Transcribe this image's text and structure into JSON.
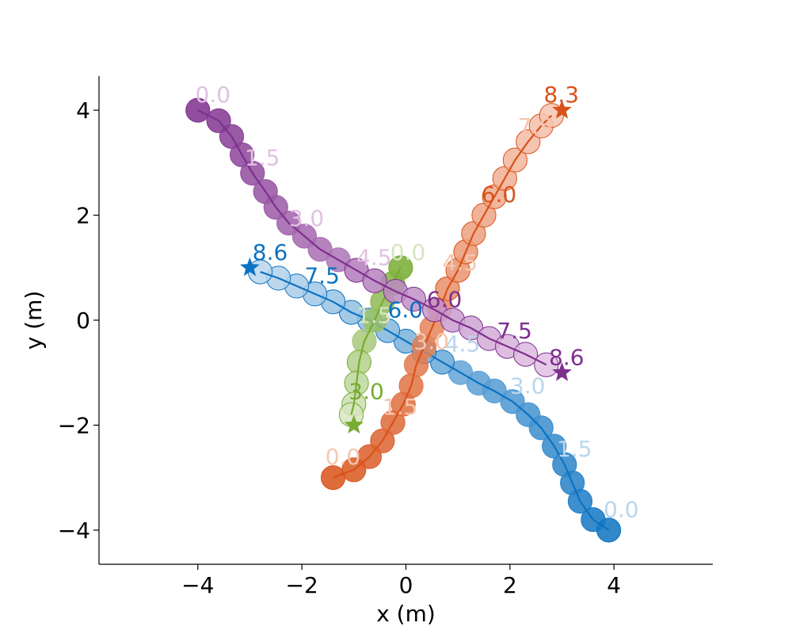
{
  "chart_data": {
    "type": "scatter",
    "title": "",
    "xlabel": "x (m)",
    "ylabel": "y (m)",
    "xlim": [
      -5.9,
      5.9
    ],
    "ylim": [
      -4.65,
      4.65
    ],
    "xticks": [
      -4,
      -2,
      0,
      2,
      4
    ],
    "yticks": [
      -4,
      -2,
      0,
      2,
      4
    ],
    "xtick_labels": [
      "−4",
      "−2",
      "0",
      "2",
      "4"
    ],
    "ytick_labels": [
      "−4",
      "−2",
      "0",
      "2",
      "4"
    ],
    "grid": false,
    "legend": "none",
    "marker_radius_data": 0.23,
    "series": [
      {
        "id": "blue",
        "color": "#0c72c1",
        "light_color": "#b9d6ec",
        "start": [
          3.9,
          -4.0
        ],
        "goal": [
          -3.0,
          1.0
        ],
        "path": [
          [
            3.9,
            -4.0
          ],
          [
            3.6,
            -3.8
          ],
          [
            3.35,
            -3.45
          ],
          [
            3.2,
            -3.1
          ],
          [
            3.05,
            -2.75
          ],
          [
            2.85,
            -2.4
          ],
          [
            2.6,
            -2.05
          ],
          [
            2.35,
            -1.8
          ],
          [
            2.05,
            -1.55
          ],
          [
            1.7,
            -1.35
          ],
          [
            1.4,
            -1.2
          ],
          [
            1.05,
            -1.0
          ],
          [
            0.7,
            -0.8
          ],
          [
            0.35,
            -0.6
          ],
          [
            0.0,
            -0.4
          ],
          [
            -0.35,
            -0.2
          ],
          [
            -0.7,
            0.0
          ],
          [
            -1.05,
            0.15
          ],
          [
            -1.4,
            0.35
          ],
          [
            -1.75,
            0.5
          ],
          [
            -2.1,
            0.65
          ],
          [
            -2.45,
            0.8
          ],
          [
            -2.8,
            0.92
          ]
        ],
        "time_labels": [
          {
            "text": "0.0",
            "x": 3.8,
            "y": -3.75,
            "tone": "light"
          },
          {
            "text": "1.5",
            "x": 2.9,
            "y": -2.6,
            "tone": "light"
          },
          {
            "text": "3.0",
            "x": 2.0,
            "y": -1.4,
            "tone": "light"
          },
          {
            "text": "4.5",
            "x": 0.75,
            "y": -0.6,
            "tone": "light"
          },
          {
            "text": "6.0",
            "x": -0.35,
            "y": 0.05,
            "tone": "dark"
          },
          {
            "text": "7.5",
            "x": -1.95,
            "y": 0.7,
            "tone": "dark"
          },
          {
            "text": "8.6",
            "x": -2.95,
            "y": 1.15,
            "tone": "dark"
          }
        ]
      },
      {
        "id": "orange",
        "color": "#d85219",
        "light_color": "#f6c6b1",
        "start": [
          -1.4,
          -3.0
        ],
        "goal": [
          3.0,
          4.0
        ],
        "path": [
          [
            -1.4,
            -3.0
          ],
          [
            -1.0,
            -2.85
          ],
          [
            -0.7,
            -2.6
          ],
          [
            -0.45,
            -2.3
          ],
          [
            -0.25,
            -1.95
          ],
          [
            -0.05,
            -1.6
          ],
          [
            0.1,
            -1.25
          ],
          [
            0.2,
            -0.85
          ],
          [
            0.35,
            -0.5
          ],
          [
            0.5,
            -0.15
          ],
          [
            0.65,
            0.2
          ],
          [
            0.8,
            0.6
          ],
          [
            1.0,
            0.95
          ],
          [
            1.15,
            1.3
          ],
          [
            1.3,
            1.65
          ],
          [
            1.5,
            2.0
          ],
          [
            1.7,
            2.35
          ],
          [
            1.9,
            2.7
          ],
          [
            2.1,
            3.05
          ],
          [
            2.35,
            3.4
          ],
          [
            2.6,
            3.7
          ],
          [
            2.8,
            3.9
          ]
        ],
        "time_labels": [
          {
            "text": "0.0",
            "x": -1.55,
            "y": -2.75,
            "tone": "light"
          },
          {
            "text": "1.5",
            "x": -0.45,
            "y": -1.8,
            "tone": "light"
          },
          {
            "text": "3.0",
            "x": 0.15,
            "y": -0.55,
            "tone": "light"
          },
          {
            "text": "4.5",
            "x": 0.7,
            "y": 0.95,
            "tone": "light"
          },
          {
            "text": "6.0",
            "x": 1.45,
            "y": 2.25,
            "tone": "dark"
          },
          {
            "text": "7.5",
            "x": 2.15,
            "y": 3.55,
            "tone": "light"
          },
          {
            "text": "8.3",
            "x": 2.65,
            "y": 4.15,
            "tone": "dark"
          }
        ]
      },
      {
        "id": "green",
        "color": "#77ac30",
        "light_color": "#d6e5c1",
        "start": [
          -0.1,
          1.0
        ],
        "goal": [
          -1.0,
          -2.0
        ],
        "path": [
          [
            -0.1,
            1.0
          ],
          [
            -0.25,
            0.7
          ],
          [
            -0.45,
            0.35
          ],
          [
            -0.6,
            0.0
          ],
          [
            -0.8,
            -0.4
          ],
          [
            -0.9,
            -0.8
          ],
          [
            -0.95,
            -1.2
          ],
          [
            -1.0,
            -1.6
          ],
          [
            -1.05,
            -1.8
          ]
        ],
        "time_labels": [
          {
            "text": "0.0",
            "x": -0.3,
            "y": 1.15,
            "tone": "light"
          },
          {
            "text": "1.5",
            "x": -0.95,
            "y": -0.05,
            "tone": "light"
          },
          {
            "text": "3.0",
            "x": -1.1,
            "y": -1.5,
            "tone": "dark"
          }
        ]
      },
      {
        "id": "purple",
        "color": "#7e2f8e",
        "light_color": "#e1c1e3",
        "start": [
          -4.0,
          4.0
        ],
        "goal": [
          3.0,
          -1.0
        ],
        "path": [
          [
            -4.0,
            4.0
          ],
          [
            -3.6,
            3.8
          ],
          [
            -3.35,
            3.5
          ],
          [
            -3.15,
            3.15
          ],
          [
            -2.95,
            2.8
          ],
          [
            -2.7,
            2.45
          ],
          [
            -2.5,
            2.15
          ],
          [
            -2.25,
            1.85
          ],
          [
            -1.95,
            1.6
          ],
          [
            -1.65,
            1.35
          ],
          [
            -1.3,
            1.15
          ],
          [
            -0.95,
            0.95
          ],
          [
            -0.6,
            0.75
          ],
          [
            -0.2,
            0.55
          ],
          [
            0.15,
            0.4
          ],
          [
            0.55,
            0.2
          ],
          [
            0.9,
            0.0
          ],
          [
            1.25,
            -0.15
          ],
          [
            1.6,
            -0.35
          ],
          [
            1.95,
            -0.5
          ],
          [
            2.3,
            -0.65
          ],
          [
            2.7,
            -0.85
          ]
        ],
        "time_labels": [
          {
            "text": "0.0",
            "x": -4.05,
            "y": 4.15,
            "tone": "light"
          },
          {
            "text": "1.5",
            "x": -3.1,
            "y": 2.95,
            "tone": "light"
          },
          {
            "text": "3.0",
            "x": -2.25,
            "y": 1.8,
            "tone": "light"
          },
          {
            "text": "4.5",
            "x": -0.95,
            "y": 1.05,
            "tone": "light"
          },
          {
            "text": "6.0",
            "x": 0.4,
            "y": 0.25,
            "tone": "dark"
          },
          {
            "text": "7.5",
            "x": 1.75,
            "y": -0.35,
            "tone": "dark"
          },
          {
            "text": "8.6",
            "x": 2.75,
            "y": -0.85,
            "tone": "dark"
          }
        ]
      }
    ]
  }
}
